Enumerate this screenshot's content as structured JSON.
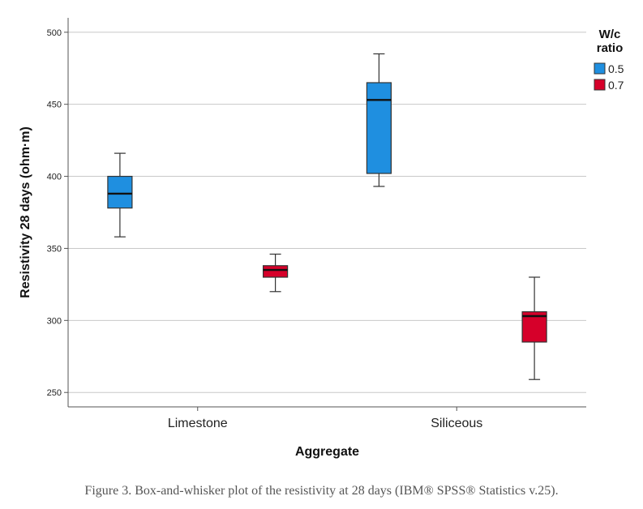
{
  "chart_data": {
    "type": "boxplot",
    "xlabel": "Aggregate",
    "ylabel": "Resistivity 28 days (ohm·m)",
    "ylim": [
      240,
      510
    ],
    "yticks": [
      250,
      300,
      350,
      400,
      450,
      500
    ],
    "grid": true,
    "categories": [
      "Limestone",
      "Siliceous"
    ],
    "legend": {
      "title_lines": [
        "W/c",
        "ratio"
      ],
      "position": "top-right"
    },
    "series": [
      {
        "name": "0.5",
        "color": "#1f8fe0",
        "boxes": [
          {
            "category": "Limestone",
            "min": 358,
            "q1": 378,
            "median": 388,
            "q3": 400,
            "max": 416
          },
          {
            "category": "Siliceous",
            "min": 393,
            "q1": 402,
            "median": 453,
            "q3": 465,
            "max": 485
          }
        ]
      },
      {
        "name": "0.7",
        "color": "#d6002a",
        "boxes": [
          {
            "category": "Limestone",
            "min": 320,
            "q1": 330,
            "median": 335,
            "q3": 338,
            "max": 346
          },
          {
            "category": "Siliceous",
            "min": 259,
            "q1": 285,
            "median": 303,
            "q3": 306,
            "max": 330
          }
        ]
      }
    ]
  },
  "caption": "Figure 3. Box-and-whisker plot of the resistivity at 28 days (IBM® SPSS® Statistics v.25)."
}
